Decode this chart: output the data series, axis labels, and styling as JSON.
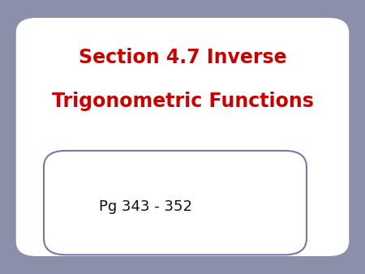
{
  "title_line1": "Section 4.7 Inverse",
  "title_line2": "Trigonometric Functions",
  "subtitle": "Pg 343 - 352",
  "title_color": "#cc0000",
  "subtitle_color": "#111111",
  "outer_bg_color": "#8c8faa",
  "inner_bg_color": "#ffffff",
  "outer_box_border_color": "#8c8faa",
  "inner_box_border_color": "#7777aa",
  "box_bg_color": "#ffffff",
  "title_fontsize": 17,
  "subtitle_fontsize": 13,
  "fig_width": 4.5,
  "fig_height": 3.38,
  "fig_dpi": 100
}
